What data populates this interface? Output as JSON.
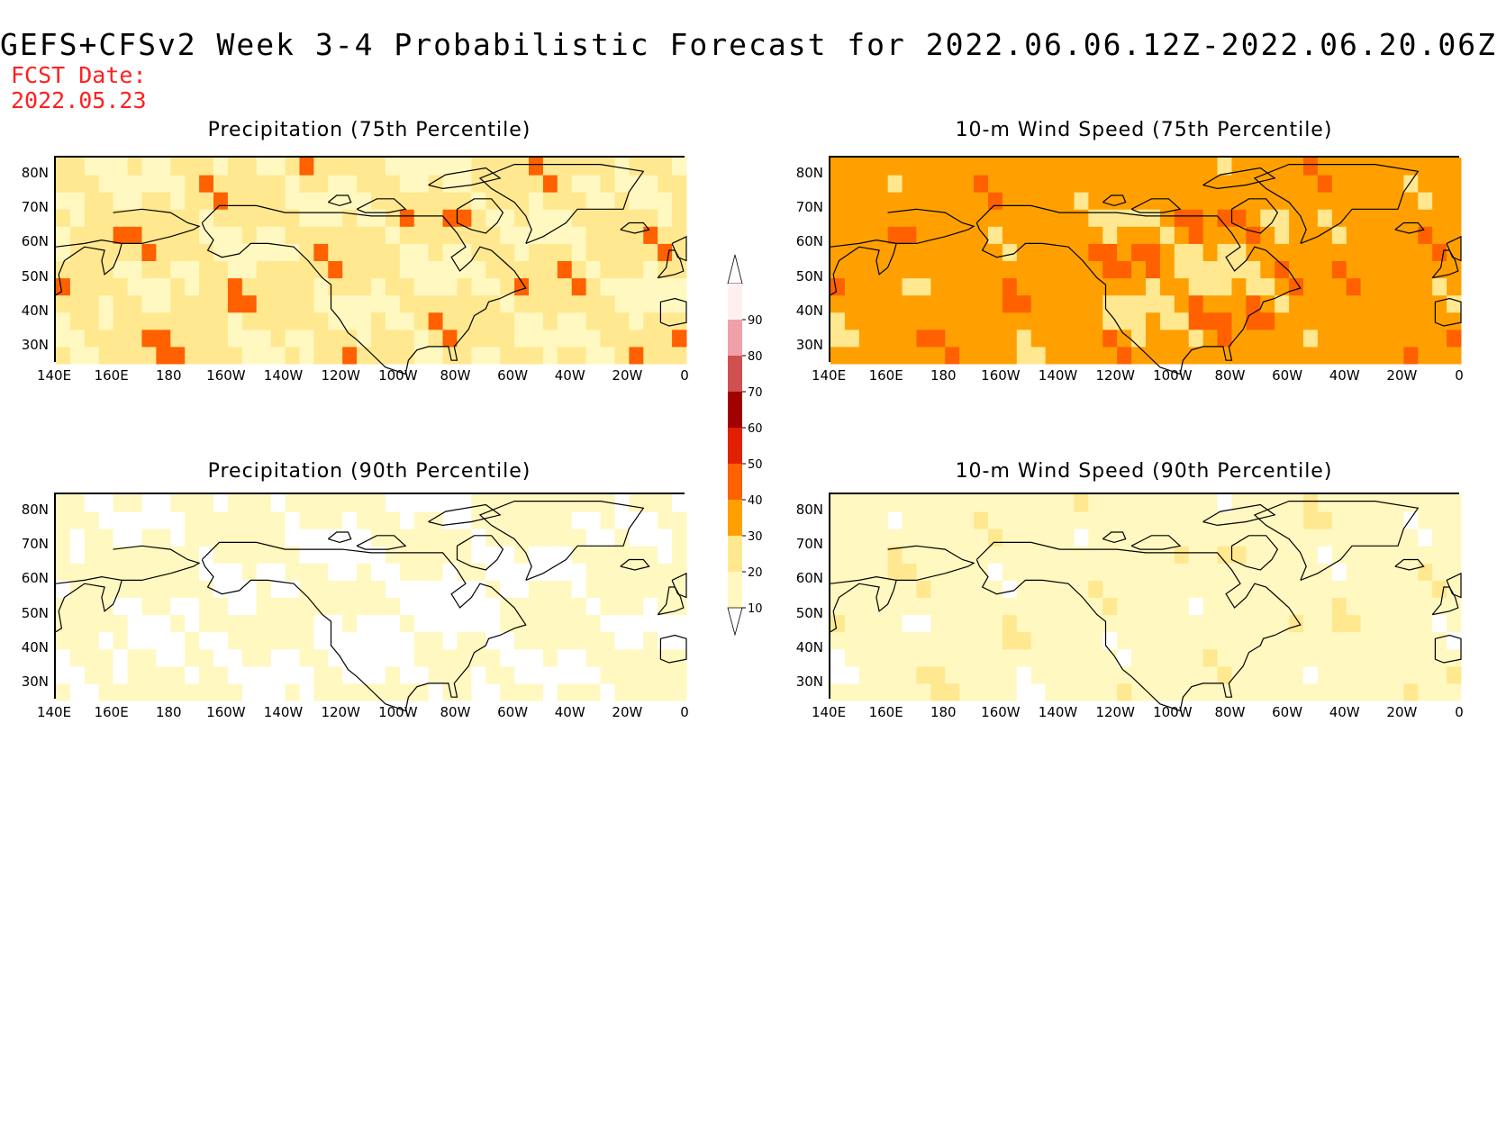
{
  "title": "GEFS+CFSv2 Week 3-4 Probabilistic Forecast for 2022.06.06.12Z-2022.06.20.06Z",
  "fcst_label": "FCST Date:",
  "fcst_date": "2022.05.23",
  "panels": [
    {
      "title": "Precipitation (75th Percentile)",
      "style": "precip75"
    },
    {
      "title": "10-m Wind Speed (75th Percentile)",
      "style": "wind75"
    },
    {
      "title": "Precipitation (90th Percentile)",
      "style": "precip90"
    },
    {
      "title": "10-m Wind Speed (90th Percentile)",
      "style": "wind90"
    }
  ],
  "lon_labels": [
    "140E",
    "160E",
    "180",
    "160W",
    "140W",
    "120W",
    "100W",
    "80W",
    "60W",
    "40W",
    "20W",
    "0"
  ],
  "lat_labels": [
    "80N",
    "70N",
    "60N",
    "50N",
    "40N",
    "30N"
  ],
  "map_extent": {
    "lon_min": 140,
    "lon_max": 360,
    "lat_min": 25,
    "lat_max": 85
  },
  "colorbar": {
    "levels": [
      "10",
      "20",
      "30",
      "40",
      "50",
      "60",
      "70",
      "80",
      "90"
    ],
    "colors": [
      "#fff8c0",
      "#ffe890",
      "#ffa000",
      "#ff6000",
      "#e02000",
      "#a00000",
      "#d05050",
      "#f0a0a8",
      "#fff0f0"
    ]
  }
}
